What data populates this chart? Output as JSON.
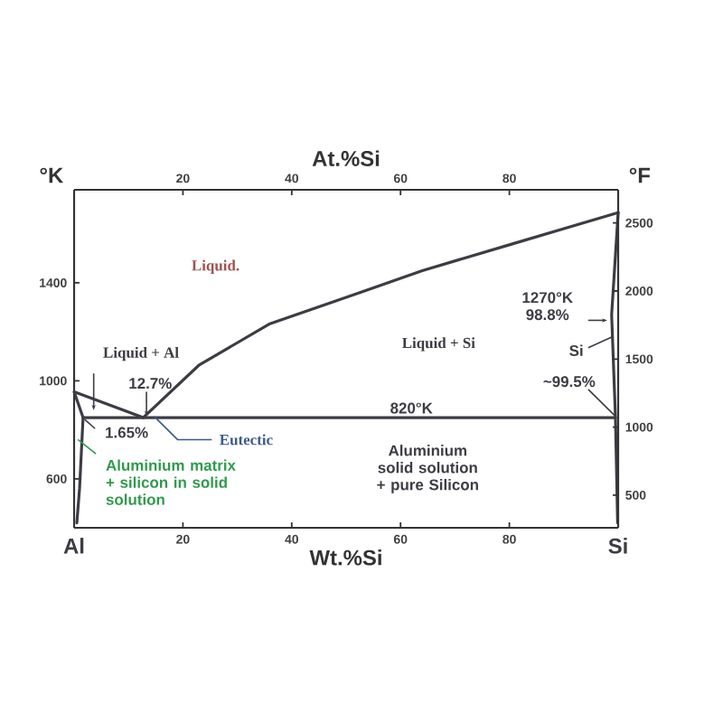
{
  "chart_data": {
    "type": "line",
    "xlabel": "Wt.%Si",
    "x2label": "At.%Si",
    "ylabel": "°K",
    "y2label": "°F",
    "xlim": [
      0,
      100
    ],
    "xticks": [
      20,
      40,
      60,
      80
    ],
    "x2lim": [
      0,
      100
    ],
    "x2ticks": [
      20,
      40,
      60,
      80
    ],
    "ylim": [
      400,
      1780
    ],
    "yticks": [
      600,
      1000,
      1400
    ],
    "y2lim": [
      260,
      2744
    ],
    "y2ticks": [
      500,
      1000,
      1500,
      2000,
      2500
    ],
    "marker": "none",
    "line_style": "solid",
    "series": [
      {
        "color": "#3c3c44",
        "x": [
          12.7,
          0,
          1.65,
          1.0,
          0.5
        ],
        "values": [
          850,
          955,
          850,
          560,
          420
        ]
      },
      {
        "color": "#3c3c44",
        "x": [
          12.7,
          23,
          36,
          53,
          64,
          80.7,
          100
        ],
        "values": [
          850,
          1065,
          1233,
          1364,
          1450,
          1560,
          1687
        ]
      },
      {
        "color": "#3c3c44",
        "x": [
          1.65,
          99.5
        ],
        "values": [
          850,
          850
        ]
      },
      {
        "color": "#3c3c44",
        "x": [
          100,
          98.8,
          99.5,
          99.9
        ],
        "values": [
          1687,
          1270,
          850,
          420
        ]
      }
    ],
    "annotations": [
      "Liquid.",
      {
        "text": "Liquid + Al",
        "x": 3.6,
        "y": 880
      },
      {
        "text": "12.7%",
        "x": 12.7,
        "y": 855
      },
      {
        "text": "1.65%",
        "x": 1.65,
        "y": 850
      },
      {
        "text": "Eutectic",
        "x": 14.7,
        "y": 855
      },
      {
        "text": "Aluminium matrix + silicon in solid solution",
        "x": 0.7,
        "y": 760
      },
      {
        "text": "820°K",
        "x": 62,
        "y": 850
      },
      "Liquid + Si",
      "Aluminium solid solution + pure Silicon",
      {
        "text": "1270°K 98.8%",
        "x": 98.3,
        "y": 1247
      },
      {
        "text": "Si",
        "x": 99,
        "y": 1180
      },
      {
        "text": "~99.5%",
        "x": 99.5,
        "y": 855
      },
      {
        "text": "Al",
        "x": 0,
        "y": 400
      },
      {
        "text": "Si",
        "x": 100,
        "y": 400
      }
    ]
  }
}
